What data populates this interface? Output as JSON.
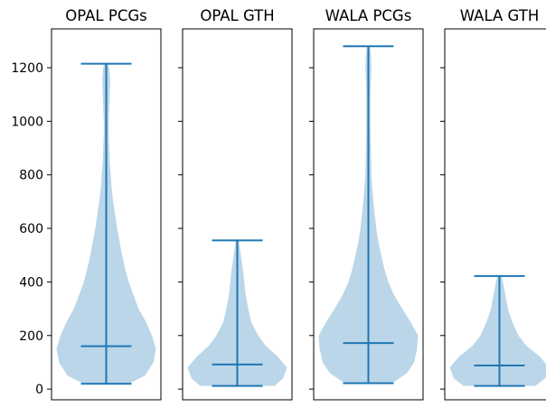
{
  "chart_data": [
    {
      "type": "violin",
      "title": "OPAL PCGs",
      "ylim": [
        -40,
        1345
      ],
      "yticks": [
        0,
        200,
        400,
        600,
        800,
        1000,
        1200
      ],
      "ytick_labels": [
        "0",
        "200",
        "400",
        "600",
        "800",
        "1000",
        "1200"
      ],
      "min": 20,
      "median": 160,
      "max": 1215,
      "density": [
        [
          20,
          0.45
        ],
        [
          50,
          0.78
        ],
        [
          100,
          0.95
        ],
        [
          150,
          1.0
        ],
        [
          200,
          0.92
        ],
        [
          250,
          0.8
        ],
        [
          300,
          0.65
        ],
        [
          350,
          0.55
        ],
        [
          400,
          0.45
        ],
        [
          450,
          0.38
        ],
        [
          500,
          0.32
        ],
        [
          550,
          0.27
        ],
        [
          600,
          0.22
        ],
        [
          650,
          0.18
        ],
        [
          700,
          0.14
        ],
        [
          750,
          0.11
        ],
        [
          800,
          0.09
        ],
        [
          850,
          0.07
        ],
        [
          900,
          0.06
        ],
        [
          950,
          0.05
        ],
        [
          1000,
          0.05
        ],
        [
          1050,
          0.06
        ],
        [
          1100,
          0.07
        ],
        [
          1150,
          0.08
        ],
        [
          1200,
          0.06
        ],
        [
          1215,
          0.03
        ]
      ]
    },
    {
      "type": "violin",
      "title": "OPAL GTH",
      "ylim": [
        -40,
        1345
      ],
      "yticks": [
        0,
        200,
        400,
        600,
        800,
        1000,
        1200
      ],
      "ytick_labels": [
        "0",
        "200",
        "400",
        "600",
        "800",
        "1000",
        "1200"
      ],
      "min": 12,
      "median": 92,
      "max": 555,
      "density": [
        [
          12,
          0.75
        ],
        [
          40,
          0.92
        ],
        [
          80,
          1.0
        ],
        [
          120,
          0.82
        ],
        [
          160,
          0.58
        ],
        [
          200,
          0.42
        ],
        [
          250,
          0.28
        ],
        [
          300,
          0.22
        ],
        [
          350,
          0.17
        ],
        [
          400,
          0.14
        ],
        [
          450,
          0.11
        ],
        [
          500,
          0.07
        ],
        [
          555,
          0.03
        ]
      ]
    },
    {
      "type": "violin",
      "title": "WALA PCGs",
      "ylim": [
        -40,
        1345
      ],
      "yticks": [
        0,
        200,
        400,
        600,
        800,
        1000,
        1200
      ],
      "ytick_labels": [
        "0",
        "200",
        "400",
        "600",
        "800",
        "1000",
        "1200"
      ],
      "min": 22,
      "median": 172,
      "max": 1280,
      "density": [
        [
          22,
          0.48
        ],
        [
          60,
          0.78
        ],
        [
          100,
          0.92
        ],
        [
          150,
          0.98
        ],
        [
          200,
          1.0
        ],
        [
          250,
          0.85
        ],
        [
          300,
          0.68
        ],
        [
          350,
          0.52
        ],
        [
          400,
          0.4
        ],
        [
          450,
          0.32
        ],
        [
          500,
          0.26
        ],
        [
          550,
          0.2
        ],
        [
          600,
          0.16
        ],
        [
          650,
          0.13
        ],
        [
          700,
          0.1
        ],
        [
          750,
          0.08
        ],
        [
          800,
          0.06
        ],
        [
          900,
          0.05
        ],
        [
          1000,
          0.04
        ],
        [
          1100,
          0.04
        ],
        [
          1150,
          0.05
        ],
        [
          1200,
          0.06
        ],
        [
          1250,
          0.05
        ],
        [
          1280,
          0.03
        ]
      ]
    },
    {
      "type": "violin",
      "title": "WALA GTH",
      "ylim": [
        -40,
        1345
      ],
      "yticks": [
        0,
        200,
        400,
        600,
        800,
        1000,
        1200
      ],
      "ytick_labels": [
        "0",
        "200",
        "400",
        "600",
        "800",
        "1000",
        "1200"
      ],
      "min": 12,
      "median": 88,
      "max": 422,
      "density": [
        [
          12,
          0.72
        ],
        [
          40,
          0.92
        ],
        [
          80,
          1.0
        ],
        [
          120,
          0.82
        ],
        [
          160,
          0.55
        ],
        [
          200,
          0.38
        ],
        [
          250,
          0.26
        ],
        [
          300,
          0.17
        ],
        [
          350,
          0.12
        ],
        [
          400,
          0.07
        ],
        [
          422,
          0.04
        ]
      ]
    }
  ],
  "colors": {
    "violin_fill": "#1f77b4",
    "stat_lines": "#1f77b4",
    "axes": "#000000"
  }
}
